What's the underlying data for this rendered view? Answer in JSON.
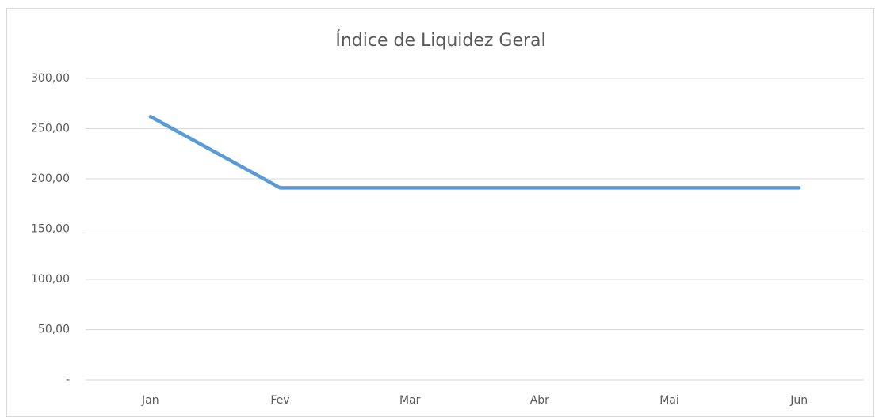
{
  "chart_data": {
    "type": "line",
    "title": "Índice de Liquidez Geral",
    "categories": [
      "Jan",
      "Fev",
      "Mar",
      "Abr",
      "Mai",
      "Jun"
    ],
    "series": [
      {
        "name": "Índice de Liquidez Geral",
        "color": "#5b9bd5",
        "values": [
          262,
          191,
          191,
          191,
          191,
          191
        ]
      }
    ],
    "ylim": [
      0,
      300
    ],
    "yticks": [
      {
        "value": 0,
        "label": "-"
      },
      {
        "value": 50,
        "label": "50,00"
      },
      {
        "value": 100,
        "label": "100,00"
      },
      {
        "value": 150,
        "label": "150,00"
      },
      {
        "value": 200,
        "label": "200,00"
      },
      {
        "value": 250,
        "label": "250,00"
      },
      {
        "value": 300,
        "label": "300,00"
      }
    ],
    "grid": true
  }
}
